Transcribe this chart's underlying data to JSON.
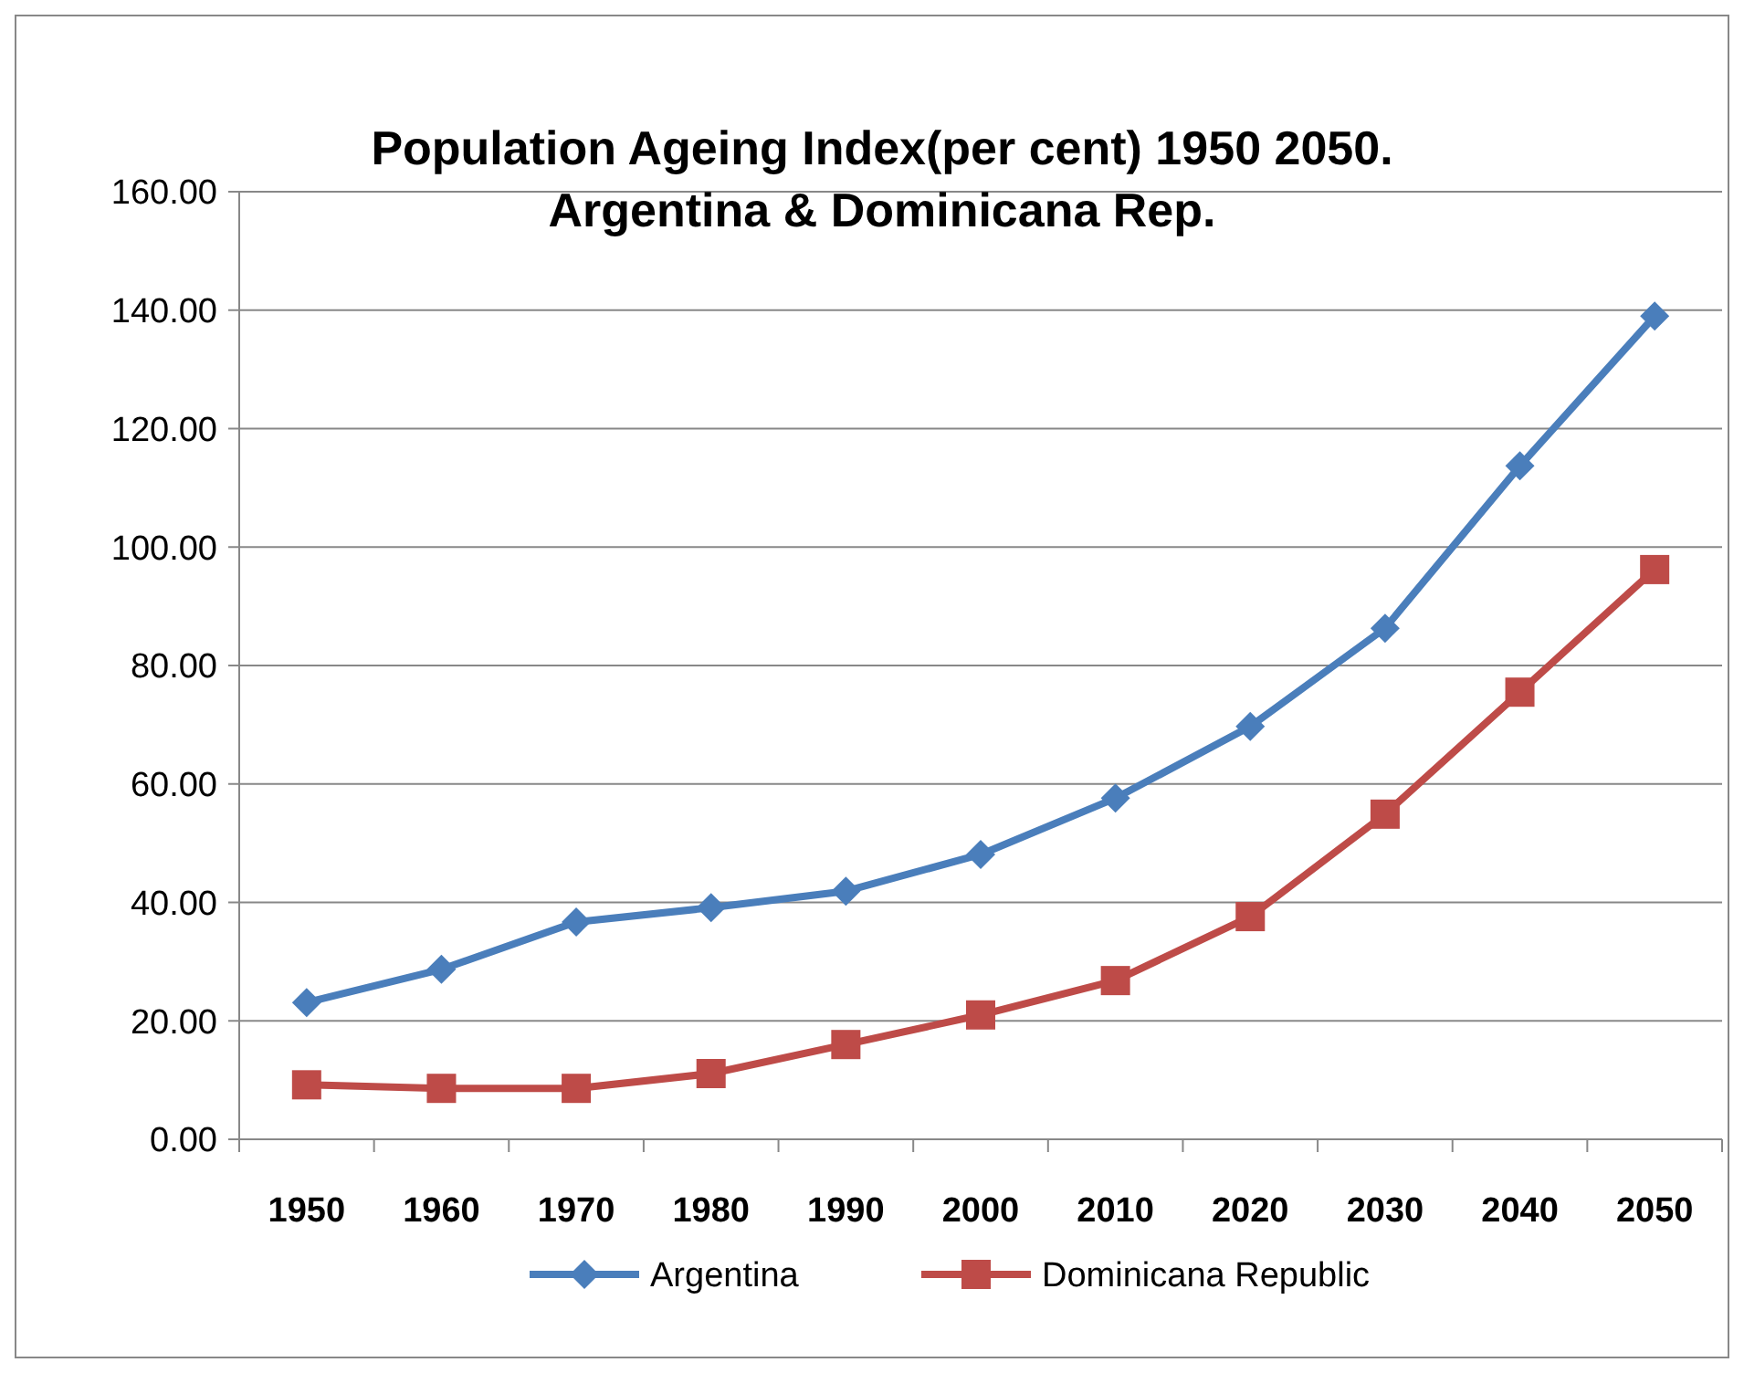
{
  "chart_data": {
    "type": "line",
    "title": "Population Ageing Index(per cent) 1950 2050.\nArgentina & Dominicana Rep.",
    "categories": [
      "1950",
      "1960",
      "1970",
      "1980",
      "1990",
      "2000",
      "2010",
      "2020",
      "2030",
      "2040",
      "2050"
    ],
    "series": [
      {
        "name": "Argentina",
        "color": "#4a7ebb",
        "marker": "diamond",
        "values": [
          23.1,
          28.7,
          36.7,
          39.1,
          41.9,
          48.1,
          57.6,
          69.7,
          86.3,
          113.7,
          139.0
        ]
      },
      {
        "name": "Dominicana Republic",
        "color": "#be4b48",
        "marker": "square",
        "values": [
          9.2,
          8.6,
          8.6,
          11.1,
          16.0,
          21.0,
          26.8,
          37.6,
          54.9,
          75.5,
          96.2
        ]
      }
    ],
    "ylim": [
      0,
      160
    ],
    "yticks": [
      {
        "value": 0,
        "label": "0.00"
      },
      {
        "value": 20,
        "label": "20.00"
      },
      {
        "value": 40,
        "label": "40.00"
      },
      {
        "value": 60,
        "label": "60.00"
      },
      {
        "value": 80,
        "label": "80.00"
      },
      {
        "value": 100,
        "label": "100.00"
      },
      {
        "value": 120,
        "label": "120.00"
      },
      {
        "value": 140,
        "label": "140.00"
      },
      {
        "value": 160,
        "label": "160.00"
      }
    ],
    "grid": "y",
    "legend": "bottom",
    "line_style": "solid"
  }
}
